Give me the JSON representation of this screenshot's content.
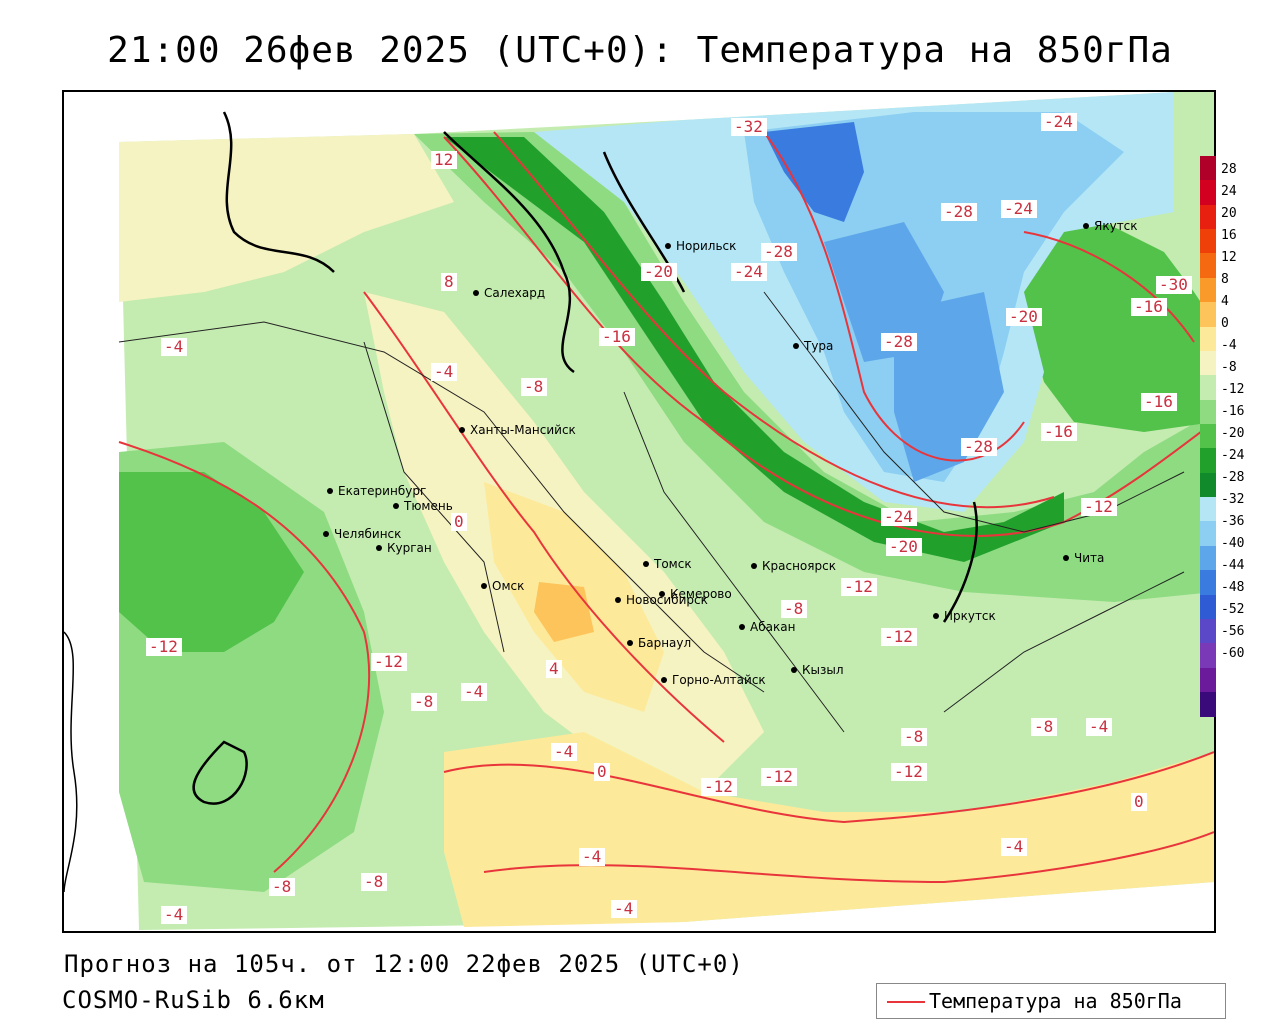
{
  "title": "21:00 26фев 2025 (UTC+0): Температура на 850гПа",
  "footer": {
    "forecast": "Прогноз на 105ч. от 12:00 22фев 2025 (UTC+0)",
    "model": "COSMO-RuSib 6.6км"
  },
  "legend": {
    "label": "Температура на 850гПа",
    "line_color": "#e8353c"
  },
  "colorbar": {
    "levels": [
      "28",
      "24",
      "20",
      "16",
      "12",
      "8",
      "4",
      "0",
      "-4",
      "-8",
      "-12",
      "-16",
      "-20",
      "-24",
      "-28",
      "-32",
      "-36",
      "-40",
      "-44",
      "-48",
      "-52",
      "-56",
      "-60"
    ],
    "colors": [
      "#b0002a",
      "#d4001f",
      "#e8200f",
      "#f0400a",
      "#f56a10",
      "#f99a2a",
      "#fcc45a",
      "#fde99a",
      "#f6f3c2",
      "#c4ecb0",
      "#8edb82",
      "#52c24a",
      "#22a02c",
      "#108a2a",
      "#b4e6f6",
      "#8ccff2",
      "#5ea6ea",
      "#3a7be0",
      "#2f5bd4",
      "#5a48c8",
      "#7a3ab8",
      "#6a1a9a",
      "#3a0a7a"
    ]
  },
  "cities": [
    {
      "name": "Салехард"
    },
    {
      "name": "Норильск"
    },
    {
      "name": "Тура"
    },
    {
      "name": "Якутск"
    },
    {
      "name": "Ханты-Мансийск"
    },
    {
      "name": "Екатеринбург"
    },
    {
      "name": "Тюмень"
    },
    {
      "name": "Челябинск"
    },
    {
      "name": "Курган"
    },
    {
      "name": "Омск"
    },
    {
      "name": "Новосибирск"
    },
    {
      "name": "Томск"
    },
    {
      "name": "Кемерово"
    },
    {
      "name": "Красноярск"
    },
    {
      "name": "Барнаул"
    },
    {
      "name": "Абакан"
    },
    {
      "name": "Горно-Алтайск"
    },
    {
      "name": "Кызыл"
    },
    {
      "name": "Иркутск"
    },
    {
      "name": "Чита"
    }
  ],
  "isotherm_labels": [
    "-32",
    "-28",
    "-24",
    "-20",
    "-16",
    "-12",
    "-8",
    "-4",
    "0",
    "4",
    "8",
    "12",
    "-30"
  ]
}
